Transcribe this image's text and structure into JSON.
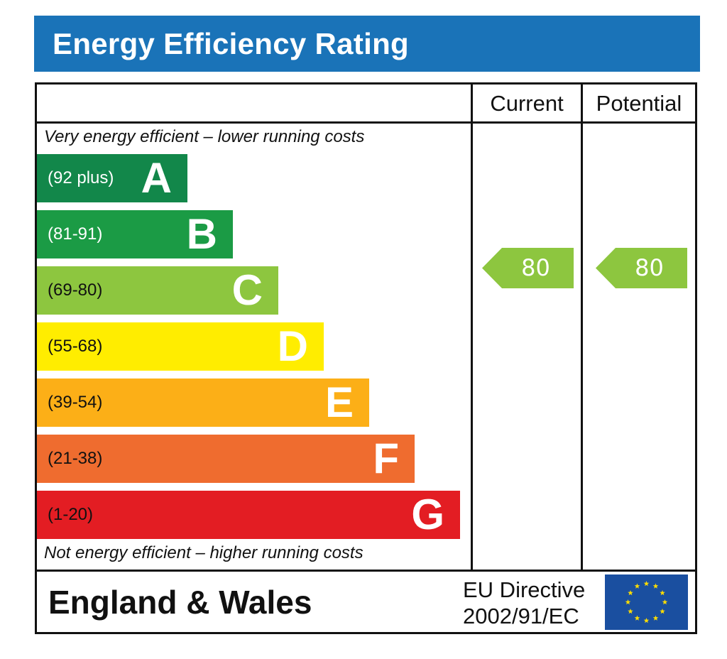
{
  "header": {
    "title": "Energy Efficiency Rating"
  },
  "columns": {
    "current": "Current",
    "potential": "Potential"
  },
  "notes": {
    "top": "Very energy efficient – lower running costs",
    "bottom": "Not energy efficient – higher running costs"
  },
  "chart_data": {
    "type": "bar",
    "title": "Energy Efficiency Rating",
    "categories": [
      "A",
      "B",
      "C",
      "D",
      "E",
      "F",
      "G"
    ],
    "ranges": [
      "(92 plus)",
      "(81-91)",
      "(69-80)",
      "(55-68)",
      "(39-54)",
      "(21-38)",
      "(1-20)"
    ],
    "colors": [
      "#12874a",
      "#1b9b45",
      "#8dc63f",
      "#ffed00",
      "#fcaf17",
      "#ef6c2f",
      "#e31d23"
    ],
    "range_text_colors": [
      "#ffffff",
      "#ffffff",
      "#111111",
      "#111111",
      "#111111",
      "#111111",
      "#111111"
    ],
    "current": {
      "value": 80,
      "band": "C"
    },
    "potential": {
      "value": 80,
      "band": "C"
    },
    "indicator_color": "#8dc63f"
  },
  "footer": {
    "region": "England & Wales",
    "directive_line1": "EU Directive",
    "directive_line2": "2002/91/EC",
    "flag_icon": "eu-flag-icon",
    "flag_color": "#1a4fa0",
    "star_color": "#ffdd00"
  }
}
